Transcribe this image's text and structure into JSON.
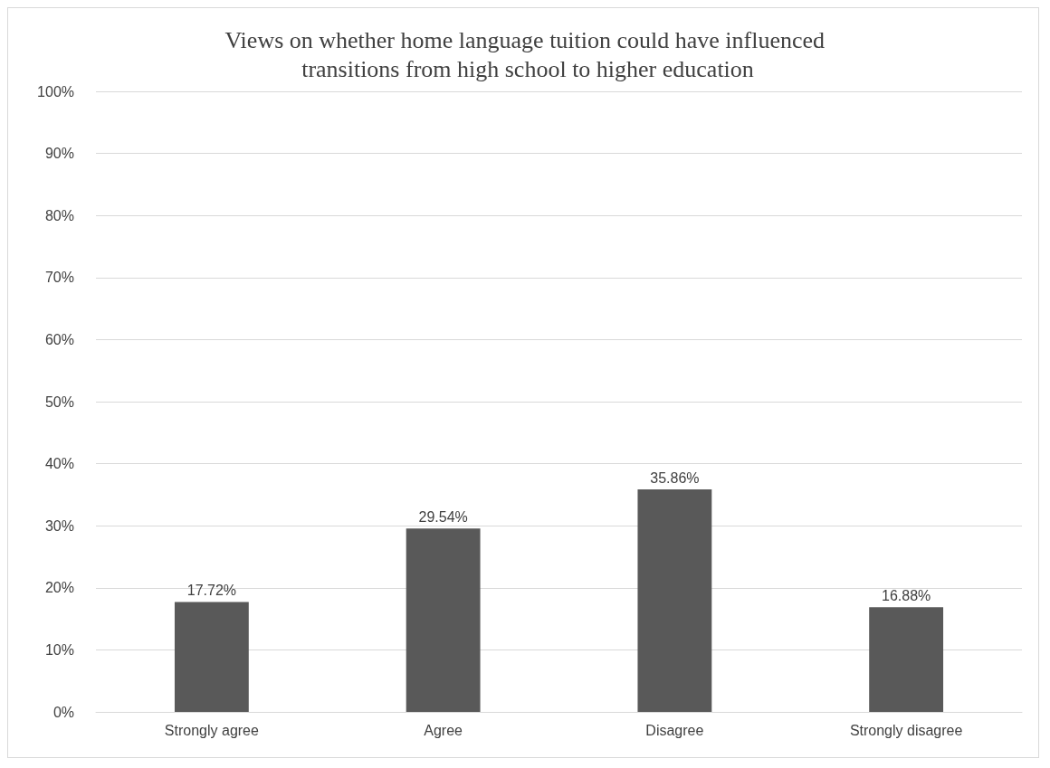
{
  "chart_data": {
    "type": "bar",
    "title": "Views on whether home language tuition could have influenced transitions from high school to higher education",
    "categories": [
      "Strongly agree",
      "Agree",
      "Disagree",
      "Strongly disagree"
    ],
    "values": [
      17.72,
      29.54,
      35.86,
      16.88
    ],
    "value_labels": [
      "17.72%",
      "29.54%",
      "35.86%",
      "16.88%"
    ],
    "color": "#595959",
    "ylim": [
      0,
      100
    ],
    "yticks": [
      {
        "value": 0,
        "label": "0%"
      },
      {
        "value": 10,
        "label": "10%"
      },
      {
        "value": 20,
        "label": "20%"
      },
      {
        "value": 30,
        "label": "30%"
      },
      {
        "value": 40,
        "label": "40%"
      },
      {
        "value": 50,
        "label": "50%"
      },
      {
        "value": 60,
        "label": "60%"
      },
      {
        "value": 70,
        "label": "70%"
      },
      {
        "value": 80,
        "label": "80%"
      },
      {
        "value": 90,
        "label": "90%"
      },
      {
        "value": 100,
        "label": "100%"
      }
    ],
    "grid": "y"
  }
}
